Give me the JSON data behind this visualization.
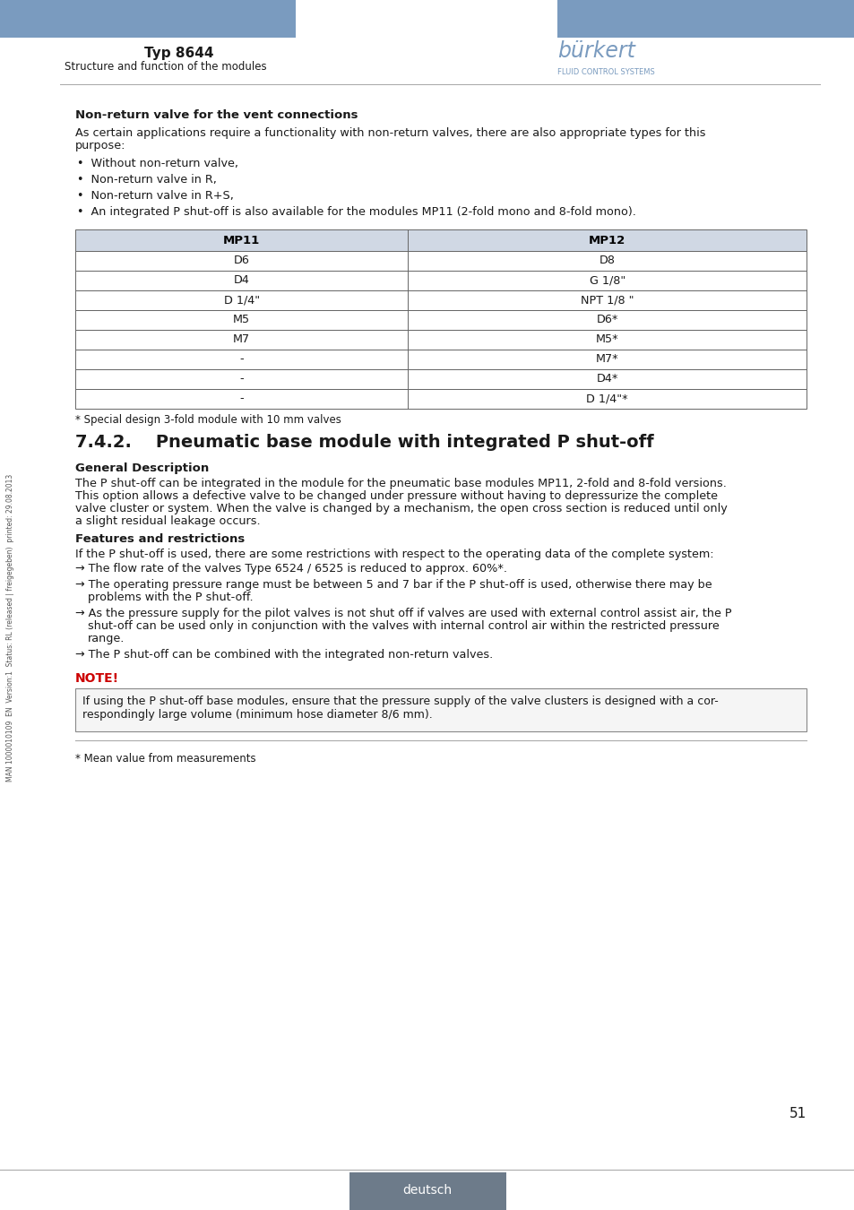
{
  "header_blue": "#7a9bbf",
  "header_text": "Typ 8644",
  "header_subtext": "Structure and function of the modules",
  "burkert_color": "#7a9bbf",
  "page_bg": "#ffffff",
  "body_text_color": "#1a1a1a",
  "table_header_bg": "#d0d8e4",
  "table_border": "#666666",
  "table_header_text": "#000000",
  "footer_bg": "#6d7b8a",
  "footer_text": "deutsch",
  "page_number": "51",
  "sidebar_text": "MAN 1000010109  EN  Version:1  Status: RL (released | freigegeben)  printed: 29.08.2013",
  "section_title": "Non-return valve for the vent connections",
  "paragraph1_line1": "As certain applications require a functionality with non-return valves, there are also appropriate types for this",
  "paragraph1_line2": "purpose:",
  "bullets": [
    "Without non-return valve,",
    "Non-return valve in R,",
    "Non-return valve in R+S,",
    "An integrated P shut-off is also available for the modules MP11 (2-fold mono and 8-fold mono)."
  ],
  "table_cols": [
    "MP11",
    "MP12"
  ],
  "table_rows": [
    [
      "D6",
      "D8"
    ],
    [
      "D4",
      "G 1/8\""
    ],
    [
      "D 1/4\"",
      "NPT 1/8 \""
    ],
    [
      "M5",
      "D6*"
    ],
    [
      "M7",
      "M5*"
    ],
    [
      "-",
      "M7*"
    ],
    [
      "-",
      "D4*"
    ],
    [
      "-",
      "D 1/4\"*"
    ]
  ],
  "table_note": "* Special design 3-fold module with 10 mm valves",
  "section2_num": "7.4.2.",
  "section2_title": "Pneumatic base module with integrated P shut-off",
  "general_desc_title": "General Description",
  "general_desc_lines": [
    "The P shut-off can be integrated in the module for the pneumatic base modules MP11, 2-fold and 8-fold versions.",
    "This option allows a defective valve to be changed under pressure without having to depressurize the complete",
    "valve cluster or system. When the valve is changed by a mechanism, the open cross section is reduced until only",
    "a slight residual leakage occurs."
  ],
  "features_title": "Features and restrictions",
  "features_intro": "If the P shut-off is used, there are some restrictions with respect to the operating data of the complete system:",
  "arrow_lines": [
    [
      "→ The flow rate of the valves Type 6524 / 6525 is reduced to approx. 60%*."
    ],
    [
      "→ The operating pressure range must be between 5 and 7 bar if the P shut-off is used, otherwise there may be",
      "   problems with the P shut-off."
    ],
    [
      "→ As the pressure supply for the pilot valves is not shut off if valves are used with external control assist air, the P",
      "   shut-off can be used only in conjunction with the valves with internal control air within the restricted pressure",
      "   range."
    ],
    [
      "→ The P shut-off can be combined with the integrated non-return valves."
    ]
  ],
  "note_title": "NOTE!",
  "note_lines": [
    "If using the P shut-off base modules, ensure that the pressure supply of the valve clusters is designed with a cor-",
    "respondingly large volume (minimum hose diameter 8/6 mm)."
  ],
  "footnote": "* Mean value from measurements",
  "note_border": "#888888",
  "note_bg": "#f5f5f5"
}
